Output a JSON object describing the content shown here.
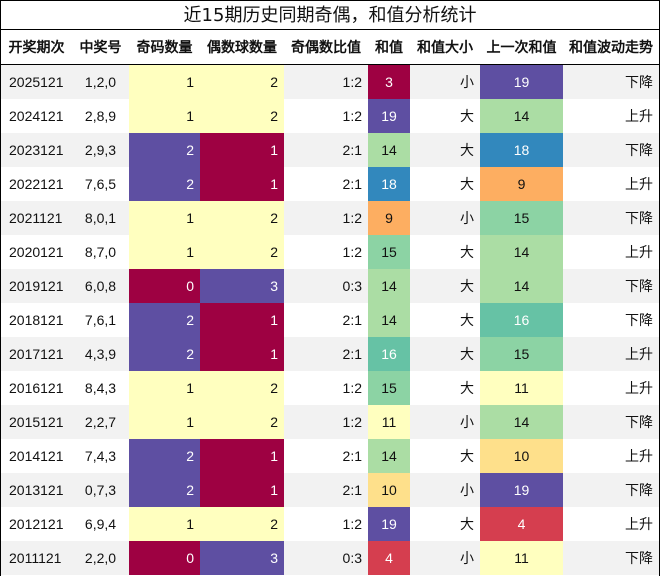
{
  "title": "近15期历史同期奇偶，和值分析统计",
  "headers": [
    "开奖期次",
    "中奖号",
    "奇码数量",
    "偶数球数量",
    "奇偶数比值",
    "和值",
    "和值大小",
    "上一次和值",
    "和值波动走势"
  ],
  "colors": {
    "odd_count": {
      "0": "#9e0142",
      "1": "#ffffbf",
      "2": "#5e4fa2"
    },
    "even_count": {
      "1": "#9e0142",
      "2": "#ffffbf",
      "3": "#5e4fa2"
    },
    "sum": {
      "3": "#9e0142",
      "4": "#d53e4f",
      "9": "#fdae61",
      "10": "#fee08b",
      "11": "#ffffbf",
      "14": "#abdda4",
      "15": "#8cd3a4",
      "16": "#66c2a5",
      "18": "#3288bd",
      "19": "#5e4fa2"
    }
  },
  "rows": [
    {
      "period": "2025121",
      "numbers": "1,2,0",
      "odd": "1",
      "even": "2",
      "ratio": "1:2",
      "sum": "3",
      "size": "小",
      "prev_sum": "19",
      "trend": "下降"
    },
    {
      "period": "2024121",
      "numbers": "2,8,9",
      "odd": "1",
      "even": "2",
      "ratio": "1:2",
      "sum": "19",
      "size": "大",
      "prev_sum": "14",
      "trend": "上升"
    },
    {
      "period": "2023121",
      "numbers": "2,9,3",
      "odd": "2",
      "even": "1",
      "ratio": "2:1",
      "sum": "14",
      "size": "大",
      "prev_sum": "18",
      "trend": "下降"
    },
    {
      "period": "2022121",
      "numbers": "7,6,5",
      "odd": "2",
      "even": "1",
      "ratio": "2:1",
      "sum": "18",
      "size": "大",
      "prev_sum": "9",
      "trend": "上升"
    },
    {
      "period": "2021121",
      "numbers": "8,0,1",
      "odd": "1",
      "even": "2",
      "ratio": "1:2",
      "sum": "9",
      "size": "小",
      "prev_sum": "15",
      "trend": "下降"
    },
    {
      "period": "2020121",
      "numbers": "8,7,0",
      "odd": "1",
      "even": "2",
      "ratio": "1:2",
      "sum": "15",
      "size": "大",
      "prev_sum": "14",
      "trend": "上升"
    },
    {
      "period": "2019121",
      "numbers": "6,0,8",
      "odd": "0",
      "even": "3",
      "ratio": "0:3",
      "sum": "14",
      "size": "大",
      "prev_sum": "14",
      "trend": "下降"
    },
    {
      "period": "2018121",
      "numbers": "7,6,1",
      "odd": "2",
      "even": "1",
      "ratio": "2:1",
      "sum": "14",
      "size": "大",
      "prev_sum": "16",
      "trend": "下降"
    },
    {
      "period": "2017121",
      "numbers": "4,3,9",
      "odd": "2",
      "even": "1",
      "ratio": "2:1",
      "sum": "16",
      "size": "大",
      "prev_sum": "15",
      "trend": "上升"
    },
    {
      "period": "2016121",
      "numbers": "8,4,3",
      "odd": "1",
      "even": "2",
      "ratio": "1:2",
      "sum": "15",
      "size": "大",
      "prev_sum": "11",
      "trend": "上升"
    },
    {
      "period": "2015121",
      "numbers": "2,2,7",
      "odd": "1",
      "even": "2",
      "ratio": "1:2",
      "sum": "11",
      "size": "小",
      "prev_sum": "14",
      "trend": "下降"
    },
    {
      "period": "2014121",
      "numbers": "7,4,3",
      "odd": "2",
      "even": "1",
      "ratio": "2:1",
      "sum": "14",
      "size": "大",
      "prev_sum": "10",
      "trend": "上升"
    },
    {
      "period": "2013121",
      "numbers": "0,7,3",
      "odd": "2",
      "even": "1",
      "ratio": "2:1",
      "sum": "10",
      "size": "小",
      "prev_sum": "19",
      "trend": "下降"
    },
    {
      "period": "2012121",
      "numbers": "6,9,4",
      "odd": "1",
      "even": "2",
      "ratio": "1:2",
      "sum": "19",
      "size": "大",
      "prev_sum": "4",
      "trend": "上升"
    },
    {
      "period": "2011121",
      "numbers": "2,2,0",
      "odd": "0",
      "even": "3",
      "ratio": "0:3",
      "sum": "4",
      "size": "小",
      "prev_sum": "11",
      "trend": "下降"
    }
  ]
}
